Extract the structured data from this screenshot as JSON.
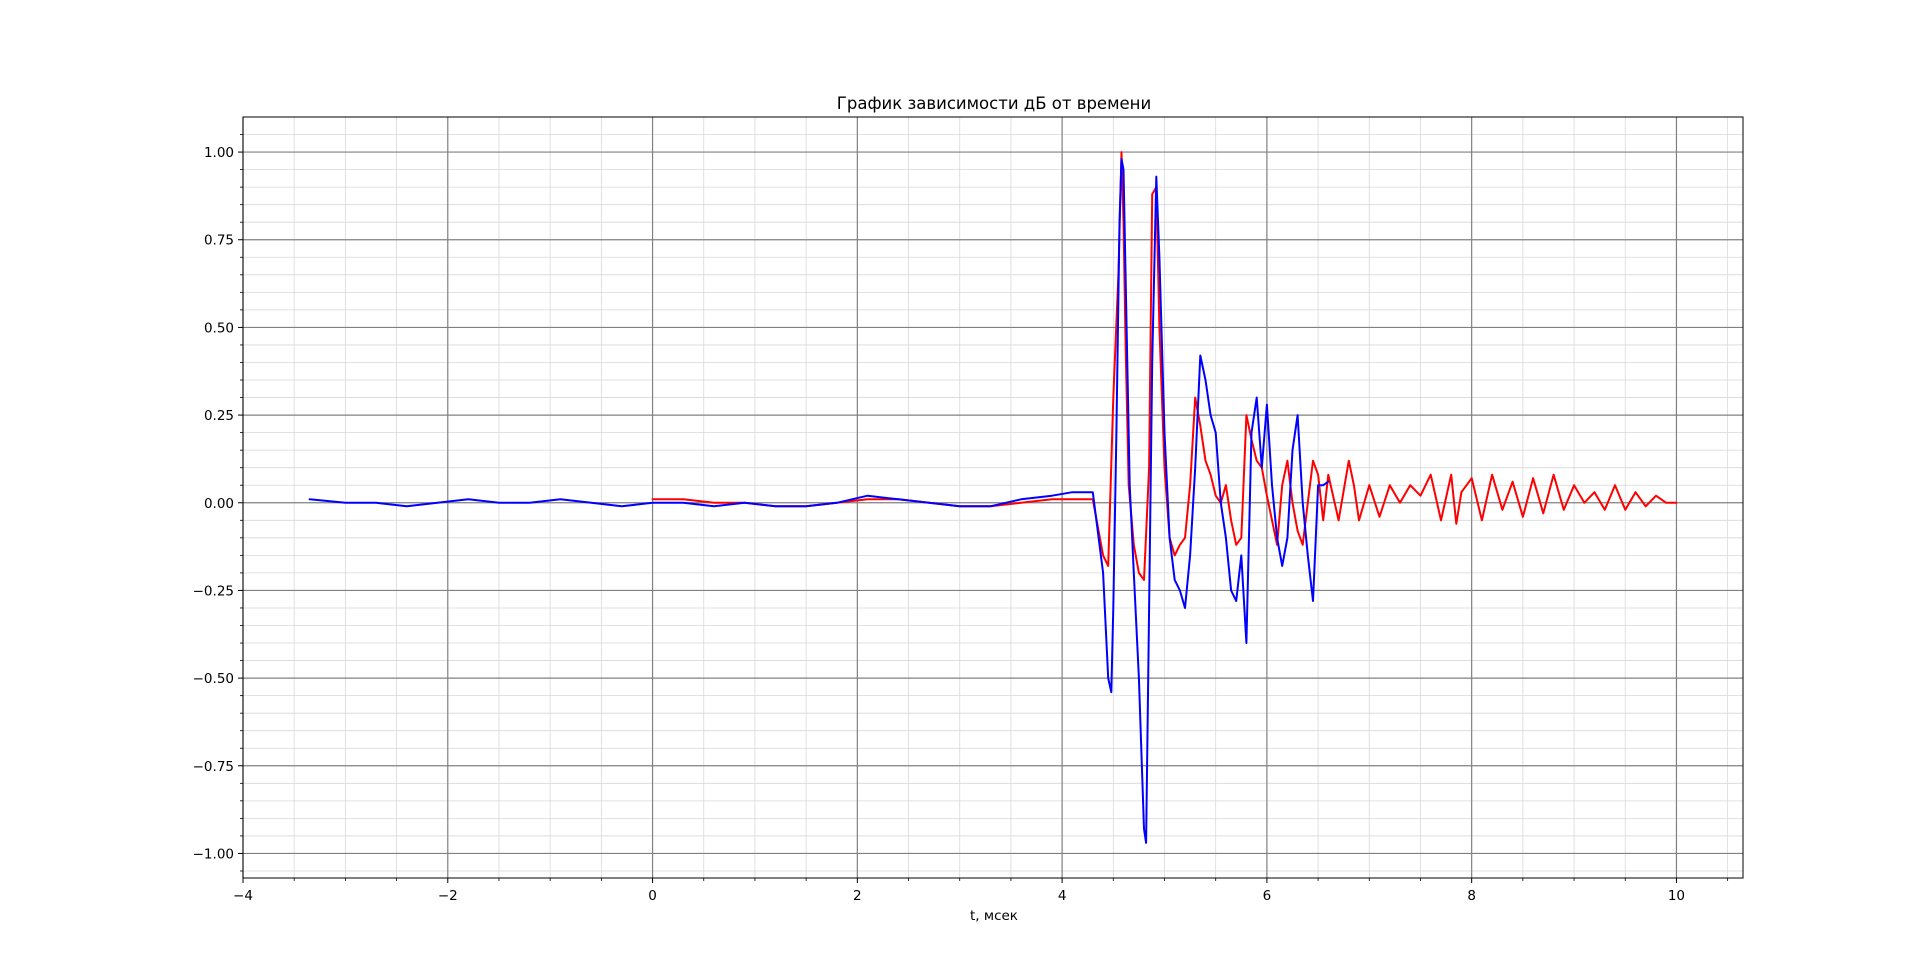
{
  "chart_data": {
    "type": "line",
    "title": "График зависимости дБ от времени",
    "xlabel": "t, мсек",
    "ylabel": "",
    "xlim": [
      -4.0,
      10.65
    ],
    "ylim": [
      -1.07,
      1.1
    ],
    "xticks": [
      -4,
      -2,
      0,
      2,
      4,
      6,
      8,
      10
    ],
    "xtick_labels": [
      "−4",
      "−2",
      "0",
      "2",
      "4",
      "6",
      "8",
      "10"
    ],
    "yticks": [
      1.0,
      0.75,
      0.5,
      0.25,
      0.0,
      -0.25,
      -0.5,
      -0.75,
      -1.0
    ],
    "ytick_labels": [
      "1.00",
      "0.75",
      "0.50",
      "0.25",
      "0.00",
      "−0.25",
      "−0.50",
      "−0.75",
      "−1.00"
    ],
    "grid": true,
    "minor_grid": true,
    "colors": {
      "series_red": "#ff0000",
      "series_blue": "#0000ff",
      "major_grid": "#808080",
      "minor_grid": "#d8d8d8"
    },
    "series": [
      {
        "color": "#ff0000",
        "x": [
          0.0,
          0.3,
          0.6,
          0.9,
          1.2,
          1.5,
          1.8,
          2.1,
          2.4,
          2.7,
          3.0,
          3.3,
          3.6,
          3.9,
          4.1,
          4.3,
          4.4,
          4.45,
          4.5,
          4.55,
          4.58,
          4.6,
          4.62,
          4.65,
          4.7,
          4.75,
          4.8,
          4.85,
          4.88,
          4.92,
          4.95,
          5.0,
          5.05,
          5.1,
          5.15,
          5.2,
          5.25,
          5.3,
          5.35,
          5.4,
          5.45,
          5.5,
          5.55,
          5.6,
          5.65,
          5.7,
          5.75,
          5.8,
          5.85,
          5.9,
          5.95,
          6.0,
          6.05,
          6.1,
          6.15,
          6.2,
          6.25,
          6.3,
          6.35,
          6.4,
          6.45,
          6.5,
          6.55,
          6.6,
          6.7,
          6.8,
          6.85,
          6.9,
          7.0,
          7.1,
          7.2,
          7.3,
          7.4,
          7.5,
          7.6,
          7.7,
          7.8,
          7.85,
          7.9,
          8.0,
          8.1,
          8.2,
          8.3,
          8.4,
          8.5,
          8.6,
          8.7,
          8.8,
          8.9,
          9.0,
          9.1,
          9.2,
          9.3,
          9.4,
          9.5,
          9.6,
          9.7,
          9.8,
          9.9,
          10.0
        ],
        "y": [
          0.01,
          0.01,
          0.0,
          0.0,
          -0.01,
          -0.01,
          0.0,
          0.01,
          0.01,
          0.0,
          -0.01,
          -0.01,
          0.0,
          0.01,
          0.01,
          0.01,
          -0.15,
          -0.18,
          0.3,
          0.65,
          1.0,
          0.8,
          0.45,
          0.05,
          -0.12,
          -0.2,
          -0.22,
          0.1,
          0.88,
          0.9,
          0.5,
          0.1,
          -0.1,
          -0.15,
          -0.12,
          -0.1,
          0.05,
          0.3,
          0.22,
          0.12,
          0.08,
          0.02,
          0.0,
          0.05,
          -0.05,
          -0.12,
          -0.1,
          0.25,
          0.18,
          0.12,
          0.1,
          0.02,
          -0.05,
          -0.12,
          0.05,
          0.12,
          0.0,
          -0.08,
          -0.12,
          0.0,
          0.12,
          0.08,
          -0.05,
          0.08,
          -0.05,
          0.12,
          0.05,
          -0.05,
          0.05,
          -0.04,
          0.05,
          0.0,
          0.05,
          0.02,
          0.08,
          -0.05,
          0.08,
          -0.06,
          0.03,
          0.07,
          -0.05,
          0.08,
          -0.02,
          0.06,
          -0.04,
          0.07,
          -0.03,
          0.08,
          -0.02,
          0.05,
          0.0,
          0.03,
          -0.02,
          0.05,
          -0.02,
          0.03,
          -0.01,
          0.02,
          0.0,
          0.0
        ]
      },
      {
        "color": "#0000ff",
        "x": [
          -3.35,
          -3.0,
          -2.7,
          -2.4,
          -2.1,
          -1.8,
          -1.5,
          -1.2,
          -0.9,
          -0.6,
          -0.3,
          0.0,
          0.3,
          0.6,
          0.9,
          1.2,
          1.5,
          1.8,
          2.1,
          2.4,
          2.7,
          3.0,
          3.3,
          3.6,
          3.9,
          4.1,
          4.3,
          4.4,
          4.45,
          4.48,
          4.5,
          4.53,
          4.56,
          4.58,
          4.6,
          4.63,
          4.66,
          4.7,
          4.75,
          4.8,
          4.82,
          4.85,
          4.88,
          4.92,
          4.95,
          5.0,
          5.05,
          5.1,
          5.15,
          5.2,
          5.25,
          5.3,
          5.35,
          5.4,
          5.45,
          5.5,
          5.55,
          5.6,
          5.65,
          5.7,
          5.75,
          5.8,
          5.85,
          5.9,
          5.95,
          6.0,
          6.05,
          6.1,
          6.15,
          6.2,
          6.25,
          6.3,
          6.35,
          6.4,
          6.45,
          6.5,
          6.55,
          6.6
        ],
        "y": [
          0.01,
          0.0,
          0.0,
          -0.01,
          0.0,
          0.01,
          0.0,
          0.0,
          0.01,
          0.0,
          -0.01,
          0.0,
          0.0,
          -0.01,
          0.0,
          -0.01,
          -0.01,
          0.0,
          0.02,
          0.01,
          0.0,
          -0.01,
          -0.01,
          0.01,
          0.02,
          0.03,
          0.03,
          -0.2,
          -0.5,
          -0.54,
          -0.3,
          0.2,
          0.8,
          0.98,
          0.95,
          0.5,
          0.05,
          -0.2,
          -0.5,
          -0.93,
          -0.97,
          -0.3,
          0.4,
          0.93,
          0.7,
          0.2,
          -0.1,
          -0.22,
          -0.25,
          -0.3,
          -0.15,
          0.1,
          0.42,
          0.35,
          0.25,
          0.2,
          0.0,
          -0.1,
          -0.25,
          -0.28,
          -0.15,
          -0.4,
          0.2,
          0.3,
          0.1,
          0.28,
          0.05,
          -0.1,
          -0.18,
          -0.1,
          0.15,
          0.25,
          0.0,
          -0.15,
          -0.28,
          0.05,
          0.05,
          0.06
        ]
      }
    ]
  }
}
